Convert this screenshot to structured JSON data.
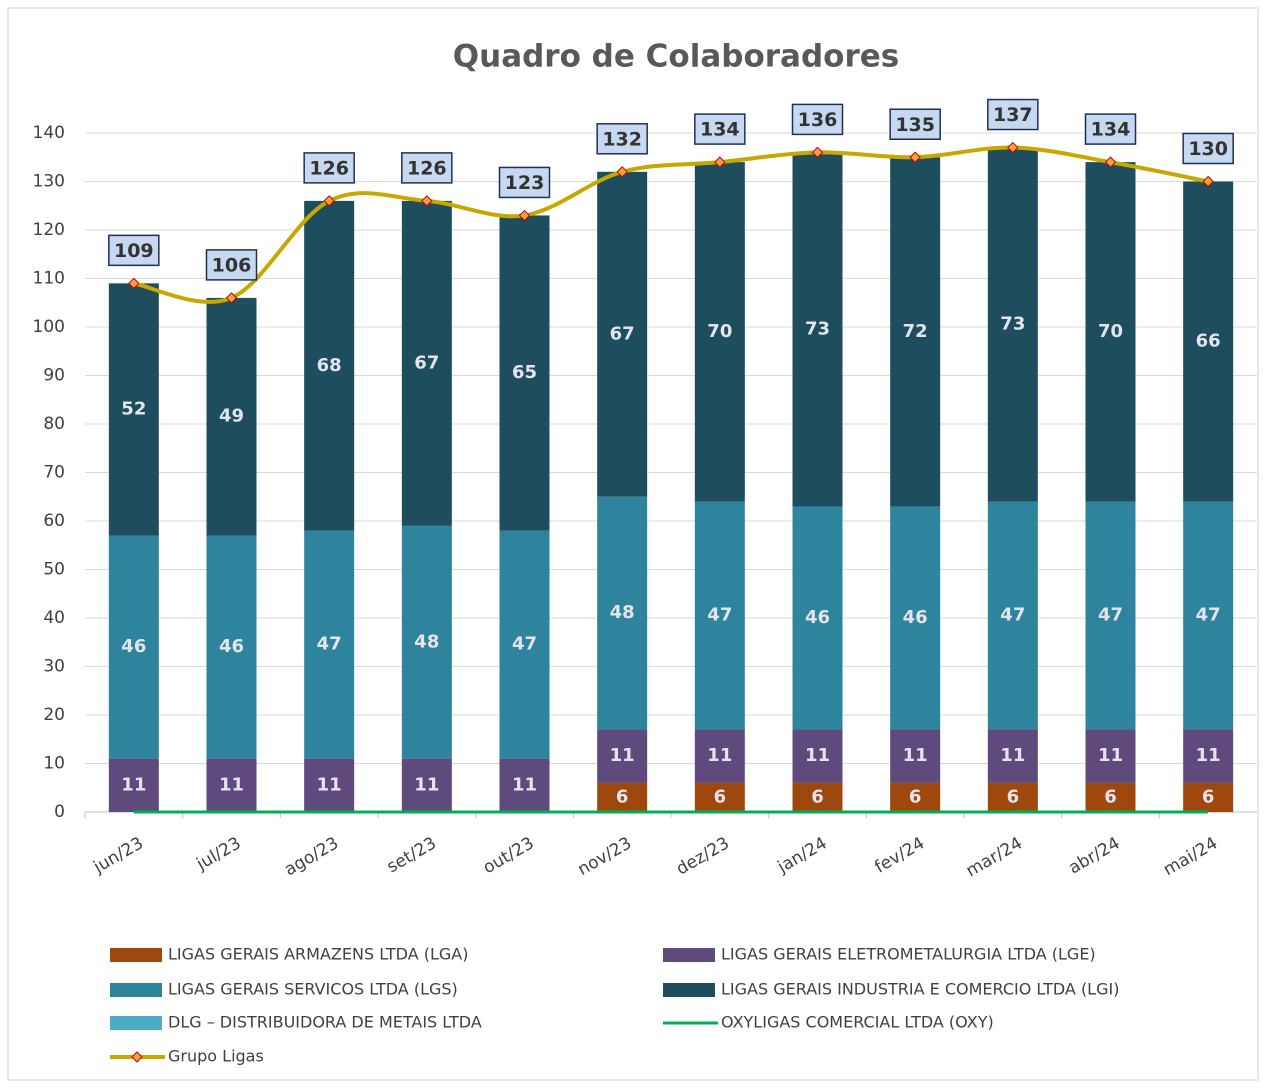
{
  "chart_data": {
    "type": "bar",
    "stacked": true,
    "title": "Quadro de Colaboradores",
    "categories": [
      "jun/23",
      "jul/23",
      "ago/23",
      "set/23",
      "out/23",
      "nov/23",
      "dez/23",
      "jan/24",
      "fev/24",
      "mar/24",
      "abr/24",
      "mai/24"
    ],
    "series": [
      {
        "name": "LIGAS GERAIS ARMAZENS LTDA (LGA)",
        "type": "bar",
        "color": "#9e480e",
        "data_labels": true,
        "values": [
          null,
          null,
          null,
          null,
          null,
          6,
          6,
          6,
          6,
          6,
          6,
          6
        ]
      },
      {
        "name": "LIGAS GERAIS ELETROMETALURGIA LTDA (LGE)",
        "type": "bar",
        "color": "#5e4a7d",
        "data_labels": true,
        "values": [
          11,
          11,
          11,
          11,
          11,
          11,
          11,
          11,
          11,
          11,
          11,
          11
        ]
      },
      {
        "name": "LIGAS GERAIS SERVICOS LTDA (LGS)",
        "type": "bar",
        "color": "#2e839d",
        "data_labels": true,
        "values": [
          46,
          46,
          47,
          48,
          47,
          48,
          47,
          46,
          46,
          47,
          47,
          47
        ]
      },
      {
        "name": "LIGAS GERAIS INDUSTRIA E COMERCIO LTDA (LGI)",
        "type": "bar",
        "color": "#1e4e5e",
        "data_labels": true,
        "values": [
          52,
          49,
          68,
          67,
          65,
          67,
          70,
          73,
          72,
          73,
          70,
          66
        ]
      },
      {
        "name": "DLG – DISTRIBUIDORA DE METAIS LTDA",
        "type": "bar",
        "color": "#4bacc6",
        "data_labels": true,
        "values": [
          null,
          null,
          null,
          null,
          null,
          null,
          null,
          null,
          null,
          null,
          null,
          null
        ]
      },
      {
        "name": "OXYLIGAS COMERCIAL LTDA (OXY)",
        "type": "line",
        "color": "#00b050",
        "values": [
          0,
          0,
          0,
          0,
          0,
          0,
          0,
          0,
          0,
          0,
          0,
          0
        ]
      },
      {
        "name": "Grupo Ligas",
        "type": "line",
        "color": "#c8a800",
        "marker": "diamond",
        "data_labels": true,
        "values": [
          109,
          106,
          126,
          126,
          123,
          132,
          134,
          136,
          135,
          137,
          134,
          130
        ]
      }
    ],
    "ylim": [
      0,
      140
    ],
    "yticks": [
      0,
      10,
      20,
      30,
      40,
      50,
      60,
      70,
      80,
      90,
      100,
      110,
      120,
      130,
      140
    ],
    "grid": true,
    "legend": "bottom"
  }
}
